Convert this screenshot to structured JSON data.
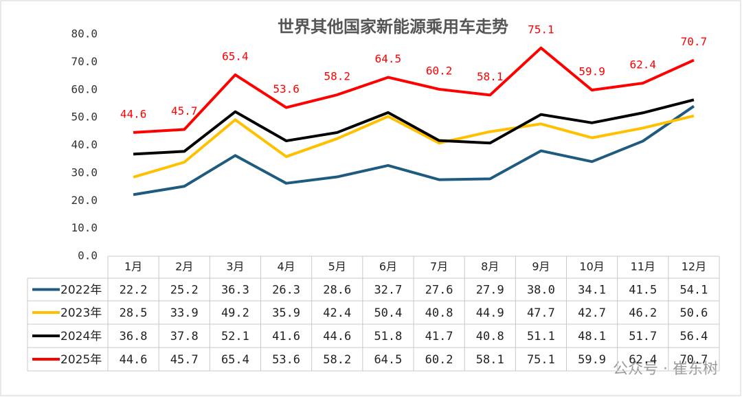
{
  "chart_data": {
    "type": "line",
    "title": "世界其他国家新能源乘用车走势",
    "categories": [
      "1月",
      "2月",
      "3月",
      "4月",
      "5月",
      "6月",
      "7月",
      "8月",
      "9月",
      "10月",
      "11月",
      "12月"
    ],
    "ylim": [
      0,
      80
    ],
    "yticks": [
      {
        "value": 0,
        "label": "0.0"
      },
      {
        "value": 10,
        "label": "10.0"
      },
      {
        "value": 20,
        "label": "20.0"
      },
      {
        "value": 30,
        "label": "30.0"
      },
      {
        "value": 40,
        "label": "40.0"
      },
      {
        "value": 50,
        "label": "50.0"
      },
      {
        "value": 60,
        "label": "60.0"
      },
      {
        "value": 70,
        "label": "70.0"
      },
      {
        "value": 80,
        "label": "80.0"
      }
    ],
    "grid": false,
    "data_labels_series": 3,
    "series": [
      {
        "name": "2022年",
        "color": "#1f5b7e",
        "values": [
          22.2,
          25.2,
          36.3,
          26.3,
          28.6,
          32.7,
          27.6,
          27.9,
          38.0,
          34.1,
          41.5,
          54.1
        ],
        "value_labels": [
          "22.2",
          "25.2",
          "36.3",
          "26.3",
          "28.6",
          "32.7",
          "27.6",
          "27.9",
          "38.0",
          "34.1",
          "41.5",
          "54.1"
        ]
      },
      {
        "name": "2023年",
        "color": "#ffc000",
        "values": [
          28.5,
          33.9,
          49.2,
          35.9,
          42.4,
          50.4,
          40.8,
          44.9,
          47.7,
          42.7,
          46.2,
          50.6
        ],
        "value_labels": [
          "28.5",
          "33.9",
          "49.2",
          "35.9",
          "42.4",
          "50.4",
          "40.8",
          "44.9",
          "47.7",
          "42.7",
          "46.2",
          "50.6"
        ]
      },
      {
        "name": "2024年",
        "color": "#000000",
        "values": [
          36.8,
          37.8,
          52.1,
          41.6,
          44.6,
          51.8,
          41.7,
          40.8,
          51.1,
          48.1,
          51.7,
          56.4
        ],
        "value_labels": [
          "36.8",
          "37.8",
          "52.1",
          "41.6",
          "44.6",
          "51.8",
          "41.7",
          "40.8",
          "51.1",
          "48.1",
          "51.7",
          "56.4"
        ]
      },
      {
        "name": "2025年",
        "color": "#ff0000",
        "values": [
          44.6,
          45.7,
          65.4,
          53.6,
          58.2,
          64.5,
          60.2,
          58.1,
          75.1,
          59.9,
          62.4,
          70.7
        ],
        "value_labels": [
          "44.6",
          "45.7",
          "65.4",
          "53.6",
          "58.2",
          "64.5",
          "60.2",
          "58.1",
          "75.1",
          "59.9",
          "62.4",
          "70.7"
        ]
      }
    ],
    "watermark": "公众号 · 崔东树"
  }
}
